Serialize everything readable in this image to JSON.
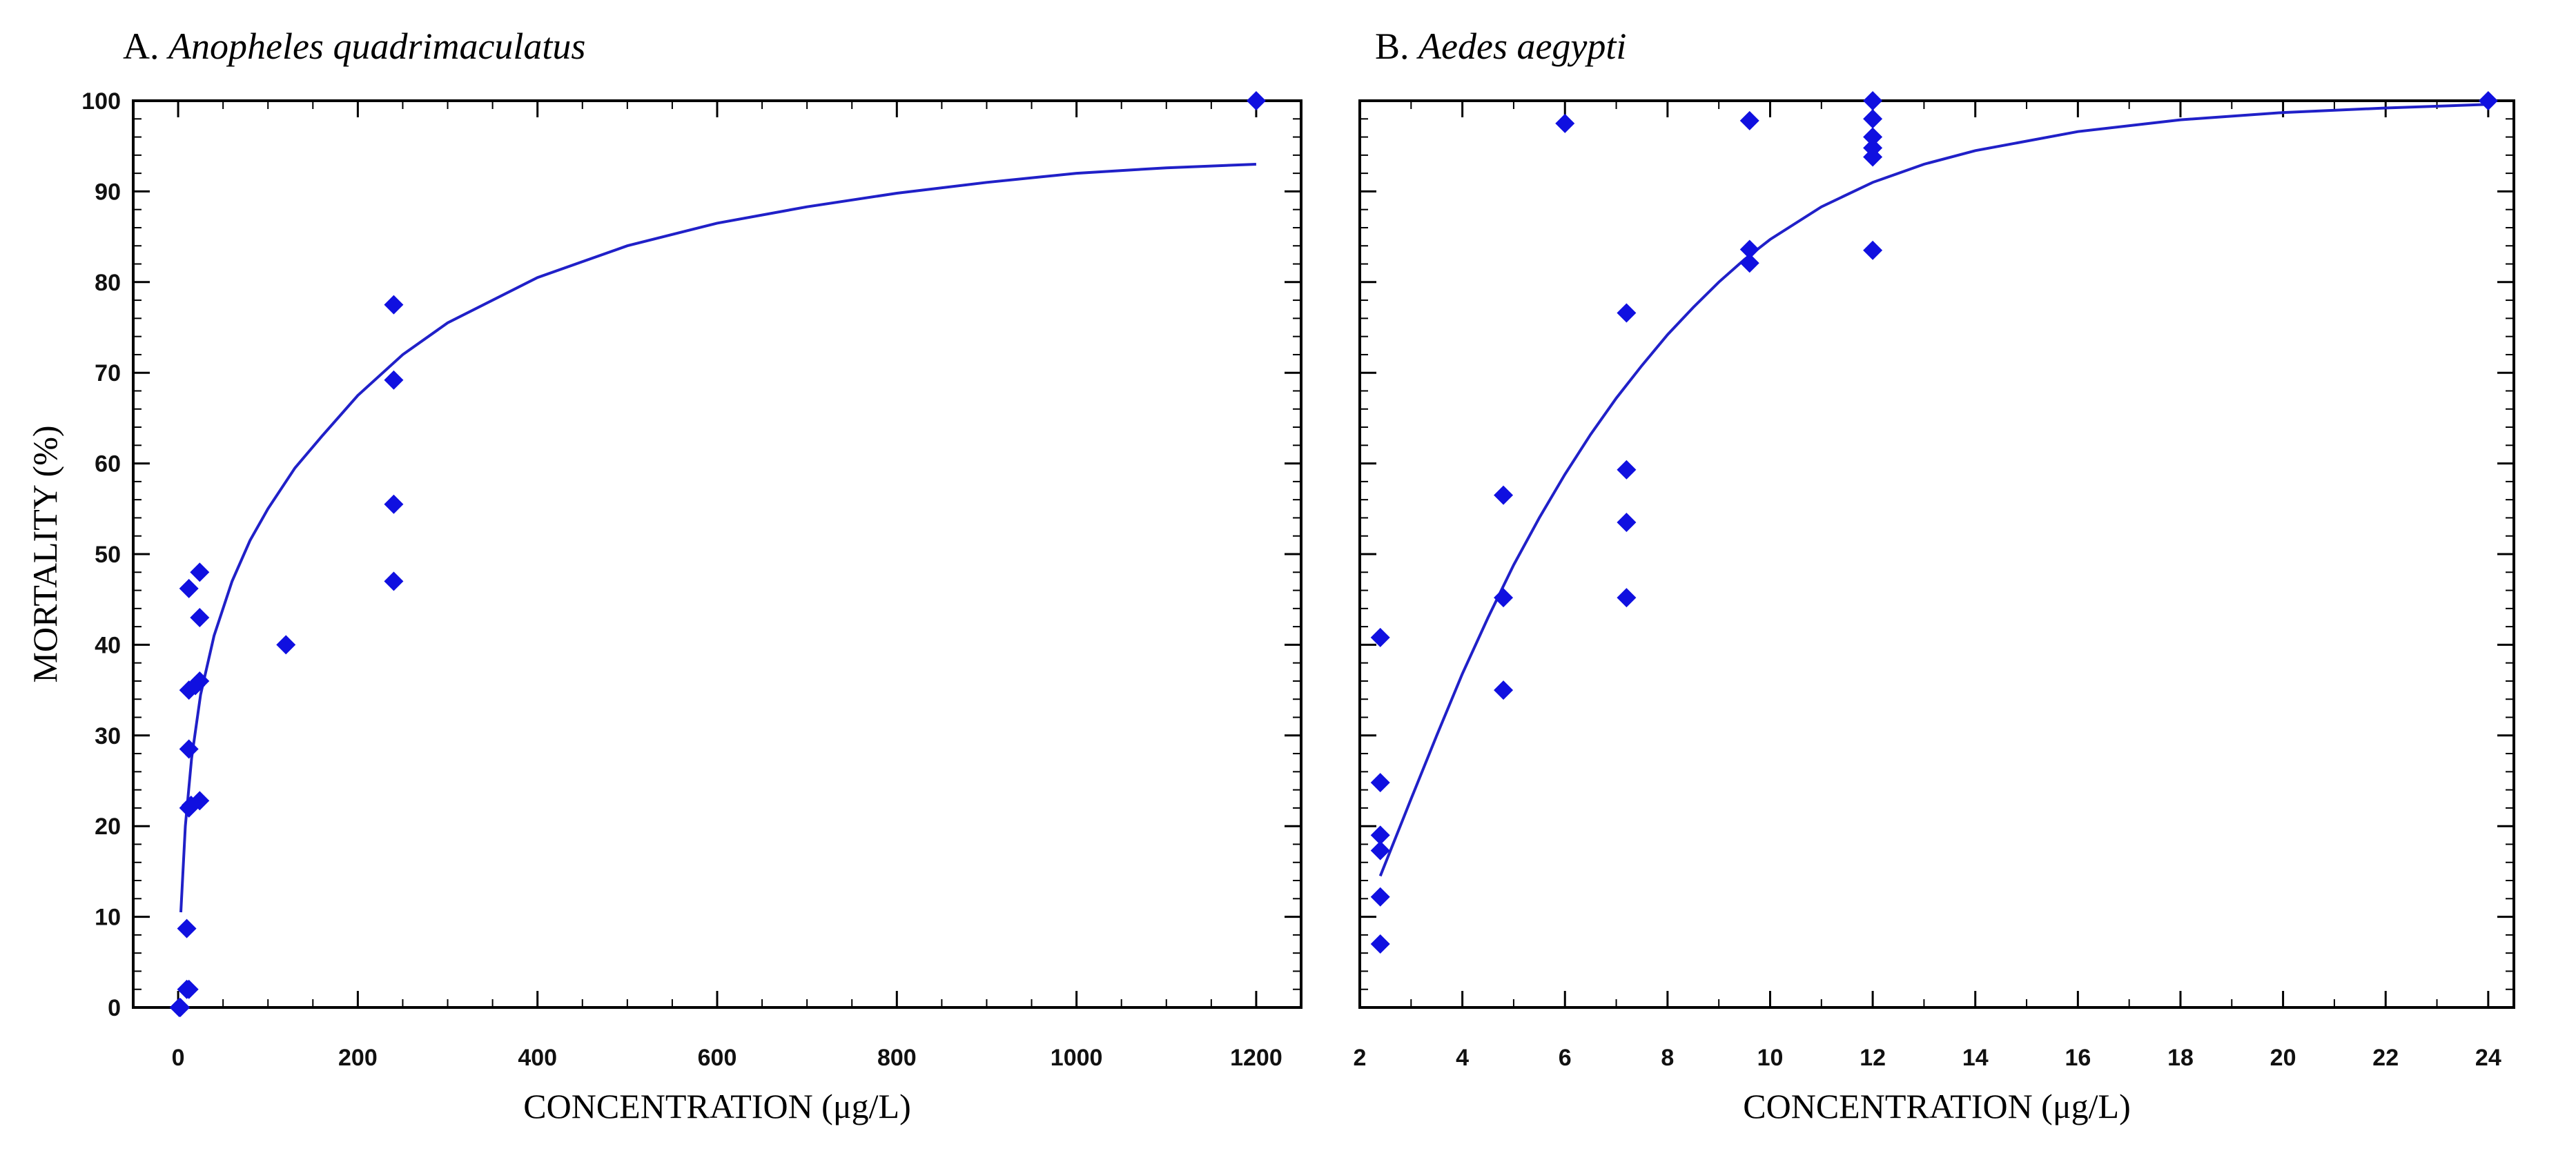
{
  "chart_data": [
    {
      "type": "scatter",
      "panel_letter": "A.",
      "title": "Anopheles quadrimaculatus",
      "xlabel": "CONCENTRATION (μg/L)",
      "ylabel": "MORTALITY (%)",
      "xlim": [
        -50,
        1250
      ],
      "ylim": [
        0,
        100
      ],
      "xticks": [
        0,
        200,
        400,
        600,
        800,
        1000,
        1200
      ],
      "yticks": [
        0,
        10,
        20,
        30,
        40,
        50,
        60,
        70,
        80,
        90,
        100
      ],
      "grid": false,
      "colors": {
        "marker": "#1010e0",
        "line": "#2020c8"
      },
      "points": [
        {
          "x": 1.2,
          "y": 0
        },
        {
          "x": 2.4,
          "y": 0
        },
        {
          "x": 9.6,
          "y": 2
        },
        {
          "x": 12,
          "y": 2
        },
        {
          "x": 9.6,
          "y": 8.7
        },
        {
          "x": 12,
          "y": 22
        },
        {
          "x": 14.4,
          "y": 22.3
        },
        {
          "x": 24,
          "y": 22.8
        },
        {
          "x": 12,
          "y": 28.5
        },
        {
          "x": 12,
          "y": 35
        },
        {
          "x": 19.2,
          "y": 35.5
        },
        {
          "x": 24,
          "y": 36
        },
        {
          "x": 24,
          "y": 43
        },
        {
          "x": 12,
          "y": 46.2
        },
        {
          "x": 24,
          "y": 48
        },
        {
          "x": 120,
          "y": 40
        },
        {
          "x": 240,
          "y": 47
        },
        {
          "x": 240,
          "y": 55.5
        },
        {
          "x": 240,
          "y": 69.2
        },
        {
          "x": 240,
          "y": 77.5
        },
        {
          "x": 1200,
          "y": 100
        }
      ],
      "fit_curve": {
        "x": [
          3,
          8,
          15,
          25,
          40,
          60,
          80,
          100,
          130,
          160,
          200,
          250,
          300,
          400,
          500,
          600,
          700,
          800,
          900,
          1000,
          1100,
          1200
        ],
        "y": [
          10.5,
          20,
          27.5,
          34.5,
          41,
          47,
          51.5,
          55,
          59.5,
          63,
          67.5,
          72,
          75.5,
          80.5,
          84,
          86.5,
          88.3,
          89.8,
          91,
          92,
          92.6,
          93
        ]
      }
    },
    {
      "type": "scatter",
      "panel_letter": "B.",
      "title": "Aedes aegypti",
      "xlabel": "CONCENTRATION (μg/L)",
      "ylabel": "",
      "xlim": [
        2,
        24.5
      ],
      "ylim": [
        0,
        100
      ],
      "xticks": [
        2,
        4,
        6,
        8,
        10,
        12,
        14,
        16,
        18,
        20,
        22,
        24
      ],
      "yticks": [
        0,
        10,
        20,
        30,
        40,
        50,
        60,
        70,
        80,
        90,
        100
      ],
      "grid": false,
      "colors": {
        "marker": "#1010e0",
        "line": "#2020c8"
      },
      "points": [
        {
          "x": 2.4,
          "y": 7
        },
        {
          "x": 2.4,
          "y": 12.2
        },
        {
          "x": 2.4,
          "y": 17.3
        },
        {
          "x": 2.4,
          "y": 19
        },
        {
          "x": 2.4,
          "y": 24.8
        },
        {
          "x": 2.4,
          "y": 40.8
        },
        {
          "x": 4.8,
          "y": 35
        },
        {
          "x": 4.8,
          "y": 45.2
        },
        {
          "x": 4.8,
          "y": 56.5
        },
        {
          "x": 6,
          "y": 97.5
        },
        {
          "x": 7.2,
          "y": 45.2
        },
        {
          "x": 7.2,
          "y": 53.5
        },
        {
          "x": 7.2,
          "y": 59.3
        },
        {
          "x": 7.2,
          "y": 76.6
        },
        {
          "x": 9.6,
          "y": 82.1
        },
        {
          "x": 9.6,
          "y": 83.6
        },
        {
          "x": 9.6,
          "y": 97.8
        },
        {
          "x": 12,
          "y": 83.5
        },
        {
          "x": 12,
          "y": 93.8
        },
        {
          "x": 12,
          "y": 94.8
        },
        {
          "x": 12,
          "y": 96
        },
        {
          "x": 12,
          "y": 98
        },
        {
          "x": 12,
          "y": 100
        },
        {
          "x": 24,
          "y": 100
        }
      ],
      "fit_curve": {
        "x": [
          2.4,
          3,
          3.5,
          4,
          4.5,
          5,
          5.5,
          6,
          6.5,
          7,
          7.5,
          8,
          8.5,
          9,
          9.5,
          10,
          11,
          12,
          13,
          14,
          16,
          18,
          20,
          22,
          24
        ],
        "y": [
          14.5,
          23,
          30,
          36.8,
          43,
          48.8,
          54,
          58.8,
          63.2,
          67.2,
          70.8,
          74.2,
          77.2,
          80,
          82.5,
          84.7,
          88.3,
          91,
          93,
          94.5,
          96.6,
          97.9,
          98.7,
          99.2,
          99.6
        ]
      }
    }
  ]
}
